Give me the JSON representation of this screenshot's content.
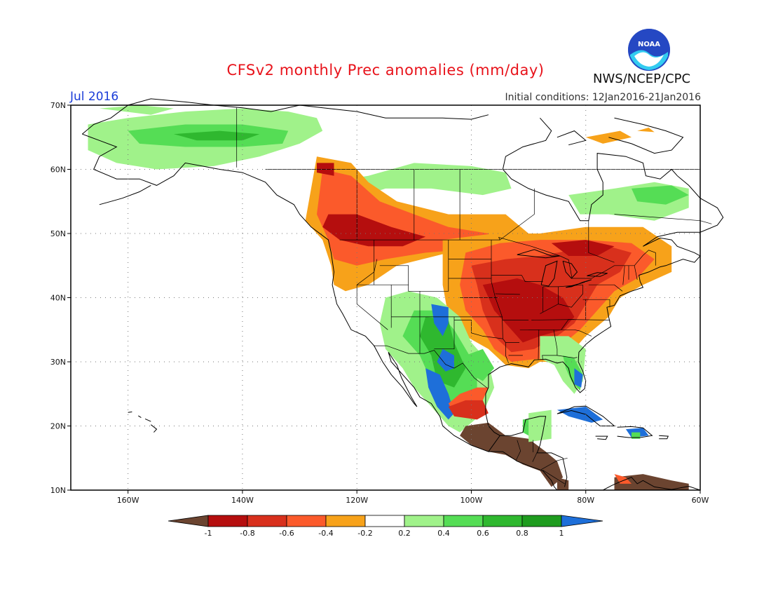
{
  "title": "CFSv2 monthly Prec anomalies (mm/day)",
  "month": "Jul 2016",
  "initial_conditions": "Initial conditions: 12Jan2016-21Jan2016",
  "agency": "NWS/NCEP/CPC",
  "logo_text": "NOAA",
  "lat_labels": [
    "70N",
    "60N",
    "50N",
    "40N",
    "30N",
    "20N",
    "10N"
  ],
  "lon_labels": [
    "160W",
    "140W",
    "120W",
    "100W",
    "80W",
    "60W"
  ],
  "colorbar": {
    "ticks": [
      "-1",
      "-0.8",
      "-0.6",
      "-0.4",
      "-0.2",
      "0.2",
      "0.4",
      "0.6",
      "0.8",
      "1"
    ],
    "colors": [
      "#6b4430",
      "#b50e0e",
      "#d8301c",
      "#fb5a2b",
      "#f7a21a",
      "#ffffff",
      "#a0f28a",
      "#55dd55",
      "#2fb82f",
      "#1f9c1f",
      "#1e6fd9"
    ]
  },
  "map": {
    "lon_range": [
      -170,
      -60
    ],
    "lat_range": [
      10,
      70
    ],
    "colors": {
      "brown": "#6b4430",
      "darkred": "#b50e0e",
      "red": "#d8301c",
      "orangered": "#fb5a2b",
      "orange": "#f7a21a",
      "lightgreen": "#a0f28a",
      "green": "#55dd55",
      "midgreen": "#2fb82f",
      "darkgreen": "#1f9c1f",
      "blue": "#1e6fd9"
    }
  }
}
